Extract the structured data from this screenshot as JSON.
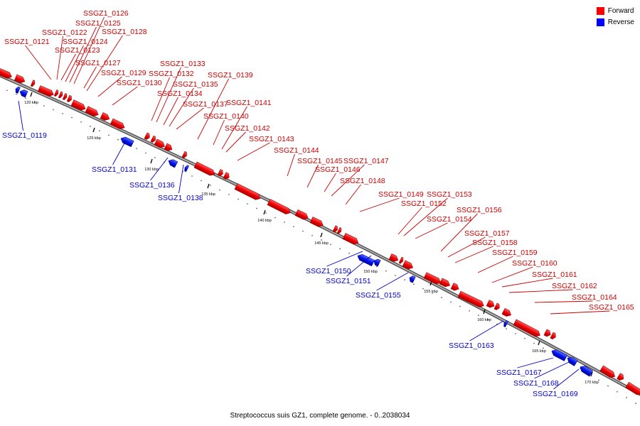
{
  "caption": "Streptococcus suis GZ1, complete genome. - 0..2038034",
  "legend": {
    "forward_label": "Forward",
    "reverse_label": "Reverse",
    "forward_color": "#ff0000",
    "reverse_color": "#0000ff"
  },
  "tick_labels": [
    "120 kbp",
    "125 kbp",
    "130 kbp",
    "135 kbp",
    "140 kbp",
    "145 kbp",
    "150 kbp",
    "155 kbp",
    "160 kbp",
    "165 kbp",
    "170 kbp"
  ],
  "forward_genes": [
    "SSGZ1_0121",
    "SSGZ1_0122",
    "SSGZ1_0123",
    "SSGZ1_0124",
    "SSGZ1_0125",
    "SSGZ1_0126",
    "SSGZ1_0127",
    "SSGZ1_0128",
    "SSGZ1_0129",
    "SSGZ1_0130",
    "SSGZ1_0132",
    "SSGZ1_0133",
    "SSGZ1_0134",
    "SSGZ1_0135",
    "SSGZ1_0137",
    "SSGZ1_0139",
    "SSGZ1_0140",
    "SSGZ1_0141",
    "SSGZ1_0142",
    "SSGZ1_0143",
    "SSGZ1_0144",
    "SSGZ1_0145",
    "SSGZ1_0146",
    "SSGZ1_0147",
    "SSGZ1_0148",
    "SSGZ1_0149",
    "SSGZ1_0152",
    "SSGZ1_0153",
    "SSGZ1_0154",
    "SSGZ1_0156",
    "SSGZ1_0157",
    "SSGZ1_0158",
    "SSGZ1_0159",
    "SSGZ1_0160",
    "SSGZ1_0161",
    "SSGZ1_0162",
    "SSGZ1_0164",
    "SSGZ1_0165"
  ],
  "reverse_genes": [
    "SSGZ1_0119",
    "SSGZ1_0131",
    "SSGZ1_0136",
    "SSGZ1_0138",
    "SSGZ1_0150",
    "SSGZ1_0151",
    "SSGZ1_0155",
    "SSGZ1_0163",
    "SSGZ1_0167",
    "SSGZ1_0168",
    "SSGZ1_0169"
  ]
}
